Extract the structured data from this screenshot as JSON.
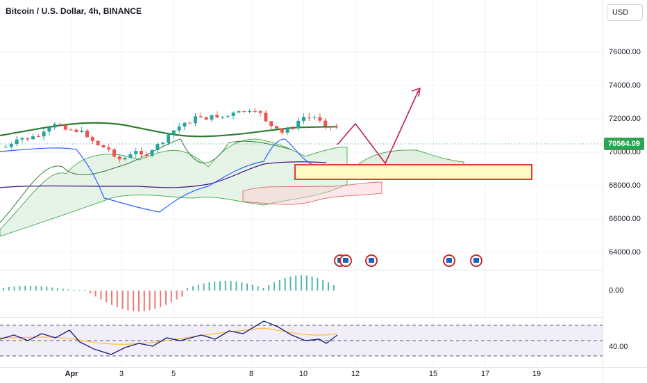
{
  "header": {
    "title": "Bitcoin / U.S. Dollar, 4h, BINANCE"
  },
  "currency": {
    "label": "USD"
  },
  "price_scale": {
    "ticks": [
      "76000.00",
      "74000.00",
      "72000.00",
      "70000.00",
      "68000.00",
      "66000.00",
      "64000.00"
    ],
    "last_price": "70564.09",
    "last_price_color": "#2ea352"
  },
  "macd_scale": {
    "ticks": [
      "0.00"
    ]
  },
  "rsi_scale": {
    "ticks": [
      "40.00"
    ]
  },
  "time_scale": {
    "ticks": [
      "Apr",
      "3",
      "5",
      "8",
      "10",
      "12",
      "15",
      "17",
      "19"
    ]
  },
  "colors": {
    "up": "#26a69a",
    "down": "#ef5350",
    "baseline": "#2e7d32",
    "conversion": "#2962ff",
    "lagging": "#4a148c",
    "zone": "#e53935",
    "projection": "#c2185b"
  },
  "events": {
    "icon": "flag-icon",
    "count": 5
  }
}
